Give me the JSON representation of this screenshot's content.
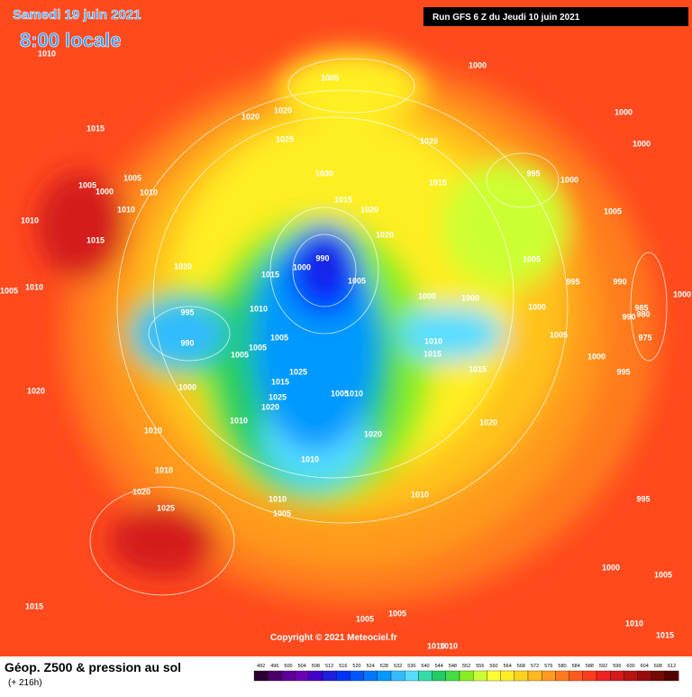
{
  "header": {
    "date": "Samedi 19 juin 2021",
    "time": "8:00 locale",
    "run": "Run GFS 6 Z du Jeudi 10 juin 2021"
  },
  "map": {
    "copyright": "Copyright © 2021 Meteociel.fr",
    "isobars": [
      "1010",
      "1005",
      "1000",
      "1020",
      "1020",
      "1015",
      "1025",
      "1020",
      "1000",
      "1000",
      "995",
      "1000",
      "1030",
      "1015",
      "1005",
      "1000",
      "1010",
      "1005",
      "1010",
      "1010",
      "1015",
      "1015",
      "1020",
      "1020",
      "1005",
      "990",
      "1000",
      "1020",
      "1015",
      "1005",
      "1005",
      "995",
      "990",
      "1005",
      "1010",
      "1000",
      "1000",
      "1000",
      "1000",
      "985",
      "990",
      "980",
      "995",
      "1010",
      "990",
      "1005",
      "1005",
      "1005",
      "975",
      "1010",
      "1015",
      "1000",
      "1005",
      "1025",
      "995",
      "1015",
      "1015",
      "1000",
      "1020",
      "1025",
      "1005",
      "1010",
      "1020",
      "1020",
      "1010",
      "1010",
      "1020",
      "1010",
      "1010",
      "1020",
      "1010",
      "1010",
      "1025",
      "1005",
      "995",
      "1000",
      "1005",
      "1015",
      "1005",
      "1005",
      "1010",
      "1015",
      "1010",
      "1010"
    ]
  },
  "footer": {
    "title": "Géop. Z500 & pression au sol",
    "lead": "(+ 216h)"
  },
  "legend": {
    "levels": [
      492,
      496,
      500,
      504,
      508,
      512,
      516,
      520,
      524,
      528,
      532,
      536,
      540,
      544,
      548,
      552,
      556,
      560,
      564,
      568,
      572,
      576,
      580,
      584,
      588,
      592,
      596,
      600,
      604,
      608,
      612
    ],
    "colors": [
      "#2a0033",
      "#4b0066",
      "#5e0099",
      "#6a00b5",
      "#4400cc",
      "#1f1fe0",
      "#0033ff",
      "#0055ff",
      "#0077ff",
      "#0099ff",
      "#33bbff",
      "#55ddff",
      "#33ddaa",
      "#22cc66",
      "#44dd44",
      "#88ee22",
      "#ccff33",
      "#ffff33",
      "#ffee22",
      "#ffd21e",
      "#ffb81e",
      "#ff9a1e",
      "#ff7a1e",
      "#ff5a1e",
      "#ff3c1e",
      "#ee2222",
      "#d41a1a",
      "#b81313",
      "#990d0d",
      "#770808",
      "#550404"
    ]
  }
}
